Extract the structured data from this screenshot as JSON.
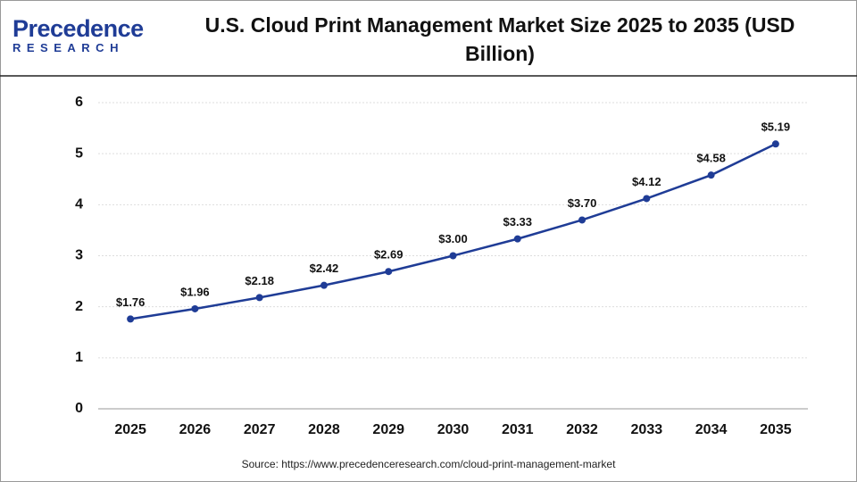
{
  "logo": {
    "name": "Precedence",
    "tagline": "RESEARCH"
  },
  "chart_data": {
    "type": "line",
    "title": "U.S. Cloud Print Management Market Size 2025 to 2035 (USD Billion)",
    "categories": [
      "2025",
      "2026",
      "2027",
      "2028",
      "2029",
      "2030",
      "2031",
      "2032",
      "2033",
      "2034",
      "2035"
    ],
    "values": [
      1.76,
      1.96,
      2.18,
      2.42,
      2.69,
      3.0,
      3.33,
      3.7,
      4.12,
      4.58,
      5.19
    ],
    "value_labels": [
      "$1.76",
      "$1.96",
      "$2.18",
      "$2.42",
      "$2.69",
      "$3.00",
      "$3.33",
      "$3.70",
      "$4.12",
      "$4.58",
      "$5.19"
    ],
    "color": "#1f3c96",
    "ylim": [
      0,
      6
    ],
    "yticks": [
      0,
      1,
      2,
      3,
      4,
      5,
      6
    ],
    "grid": true,
    "source": "Source: https://www.precedenceresearch.com/cloud-print-management-market"
  }
}
